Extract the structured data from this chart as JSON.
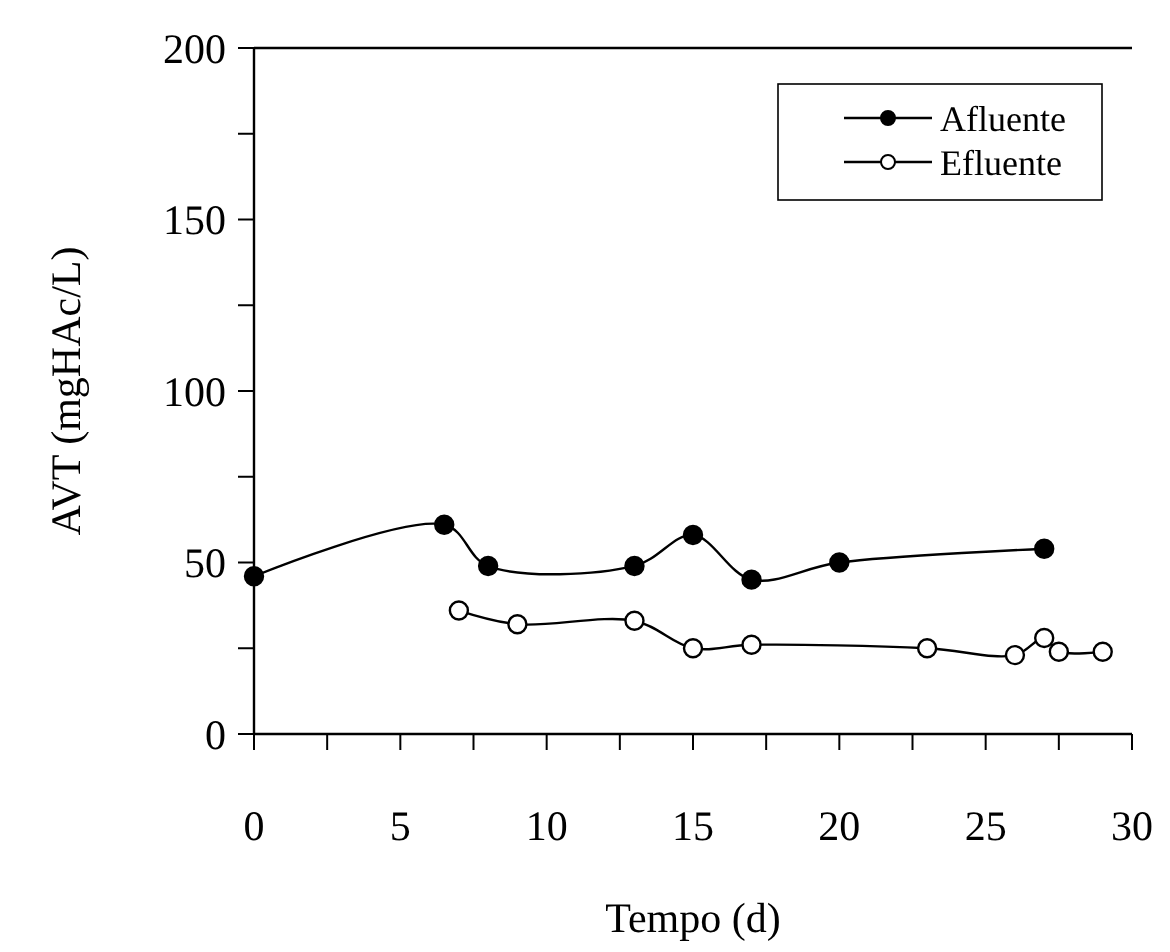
{
  "chart_data": {
    "type": "line",
    "xlabel": "Tempo (d)",
    "ylabel": "AVT (mgHAc/L)",
    "xlim": [
      0,
      30
    ],
    "xticks": [
      0,
      {
        "value": 2.5,
        "label": null
      },
      5,
      {
        "value": 7.5,
        "label": null
      },
      10,
      {
        "value": 12.5,
        "label": null
      },
      15,
      {
        "value": 17.5,
        "label": null
      },
      20,
      {
        "value": 22.5,
        "label": null
      },
      25,
      {
        "value": 27.5,
        "label": null
      },
      30
    ],
    "ylim": [
      0,
      200
    ],
    "yticks": [
      0,
      {
        "value": 25,
        "label": null
      },
      50,
      {
        "value": 75,
        "label": null
      },
      100,
      {
        "value": 125,
        "label": null
      },
      150,
      {
        "value": 175,
        "label": null
      },
      200
    ],
    "legend": "top right",
    "grid": false,
    "series": [
      {
        "name": "Afluente",
        "color": "#000000",
        "marker": "circle",
        "x": [
          0,
          6.5,
          8,
          13,
          15,
          17,
          20,
          27
        ],
        "values": [
          46,
          61,
          49,
          49,
          58,
          45,
          50,
          54
        ]
      },
      {
        "name": "Efluente",
        "color": "#000000",
        "marker": "circle_open",
        "x": [
          7,
          9,
          13,
          15,
          17,
          23,
          26,
          27,
          27.5,
          29
        ],
        "values": [
          36,
          32,
          33,
          25,
          26,
          25,
          23,
          28,
          24,
          24
        ]
      }
    ]
  }
}
